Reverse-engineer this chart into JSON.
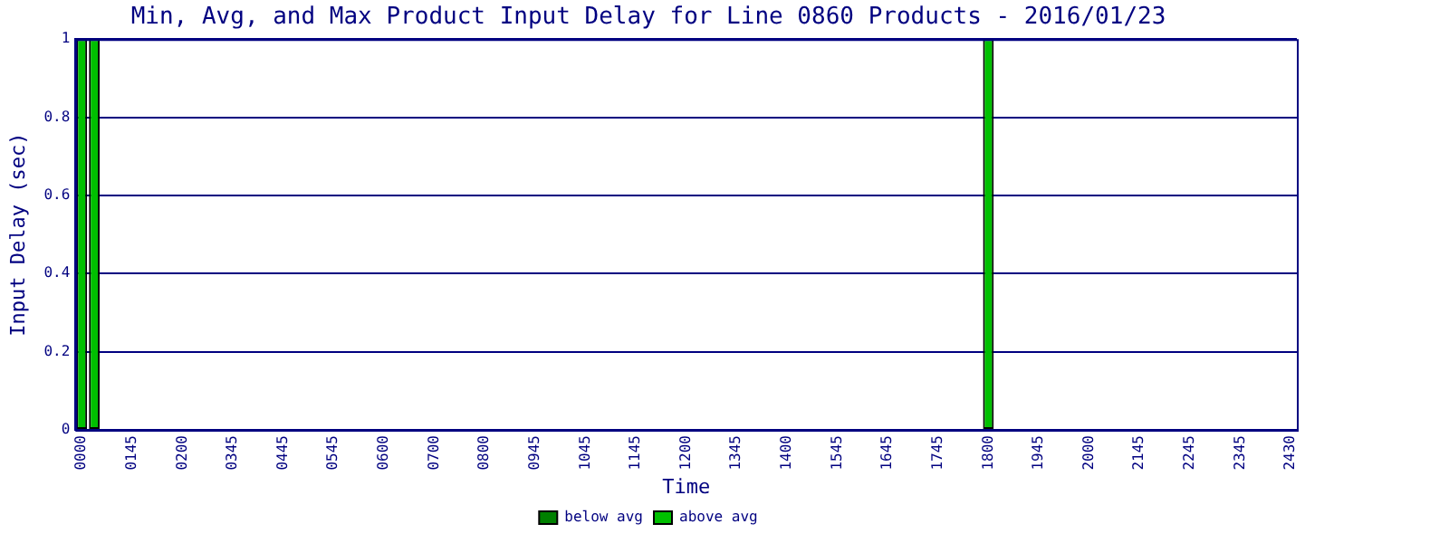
{
  "chart_data": {
    "type": "bar",
    "title": "Min, Avg, and Max Product Input Delay for Line 0860 Products - 2016/01/23",
    "xlabel": "Time",
    "ylabel": "Input Delay (sec)",
    "categories": [
      "0000",
      null,
      null,
      null,
      "0145",
      null,
      null,
      null,
      "0200",
      null,
      null,
      null,
      "0345",
      null,
      null,
      null,
      "0445",
      null,
      null,
      null,
      "0545",
      null,
      null,
      null,
      "0600",
      null,
      null,
      null,
      "0700",
      null,
      null,
      null,
      "0800",
      null,
      null,
      null,
      "0945",
      null,
      null,
      null,
      "1045",
      null,
      null,
      null,
      "1145",
      null,
      null,
      null,
      "1200",
      null,
      null,
      null,
      "1345",
      null,
      null,
      null,
      "1400",
      null,
      null,
      null,
      "1545",
      null,
      null,
      null,
      "1645",
      null,
      null,
      null,
      "1745",
      null,
      null,
      null,
      "1800",
      null,
      null,
      null,
      "1945",
      null,
      null,
      null,
      "2000",
      null,
      null,
      null,
      "2145",
      null,
      null,
      null,
      "2245",
      null,
      null,
      null,
      "2345",
      null,
      null,
      null,
      "2430"
    ],
    "series": [
      {
        "name": "below avg",
        "color": "#008000",
        "values": [
          null,
          null,
          null,
          null,
          null,
          null,
          null,
          null,
          null,
          null,
          null,
          null,
          null,
          null,
          null,
          null,
          null,
          null,
          null,
          null,
          null,
          null,
          null,
          null,
          null,
          null,
          null,
          null,
          null,
          null,
          null,
          null,
          null,
          null,
          null,
          null,
          null,
          null,
          null,
          null,
          null,
          null,
          null,
          null,
          null,
          null,
          null,
          null,
          null,
          null,
          null,
          null,
          null,
          null,
          null,
          null,
          null,
          null,
          null,
          null,
          null,
          null,
          null,
          null,
          null,
          null,
          null,
          null,
          null,
          null,
          null,
          null,
          null,
          null,
          null,
          null,
          null,
          null,
          null,
          null,
          null,
          null,
          null,
          null,
          null,
          null,
          null,
          null,
          null,
          null,
          null,
          null,
          null,
          null,
          null,
          null,
          null
        ]
      },
      {
        "name": "above avg",
        "color": "#00c000",
        "values": [
          1,
          1,
          null,
          null,
          null,
          null,
          null,
          null,
          null,
          null,
          null,
          null,
          null,
          null,
          null,
          null,
          null,
          null,
          null,
          null,
          null,
          null,
          null,
          null,
          null,
          null,
          null,
          null,
          null,
          null,
          null,
          null,
          null,
          null,
          null,
          null,
          null,
          null,
          null,
          null,
          null,
          null,
          null,
          null,
          null,
          null,
          null,
          null,
          null,
          null,
          null,
          null,
          null,
          null,
          null,
          null,
          null,
          null,
          null,
          null,
          null,
          null,
          null,
          null,
          null,
          null,
          null,
          null,
          null,
          null,
          null,
          null,
          1,
          null,
          null,
          null,
          null,
          null,
          null,
          null,
          null,
          null,
          null,
          null,
          null,
          null,
          null,
          null,
          null,
          null,
          null,
          null,
          null,
          null,
          null,
          null,
          null
        ]
      }
    ],
    "stacked": true,
    "ylim": [
      0,
      1
    ],
    "yticks": [
      0,
      0.2,
      0.4,
      0.6,
      0.8,
      1
    ],
    "grid": "y",
    "legend": "bottom"
  }
}
